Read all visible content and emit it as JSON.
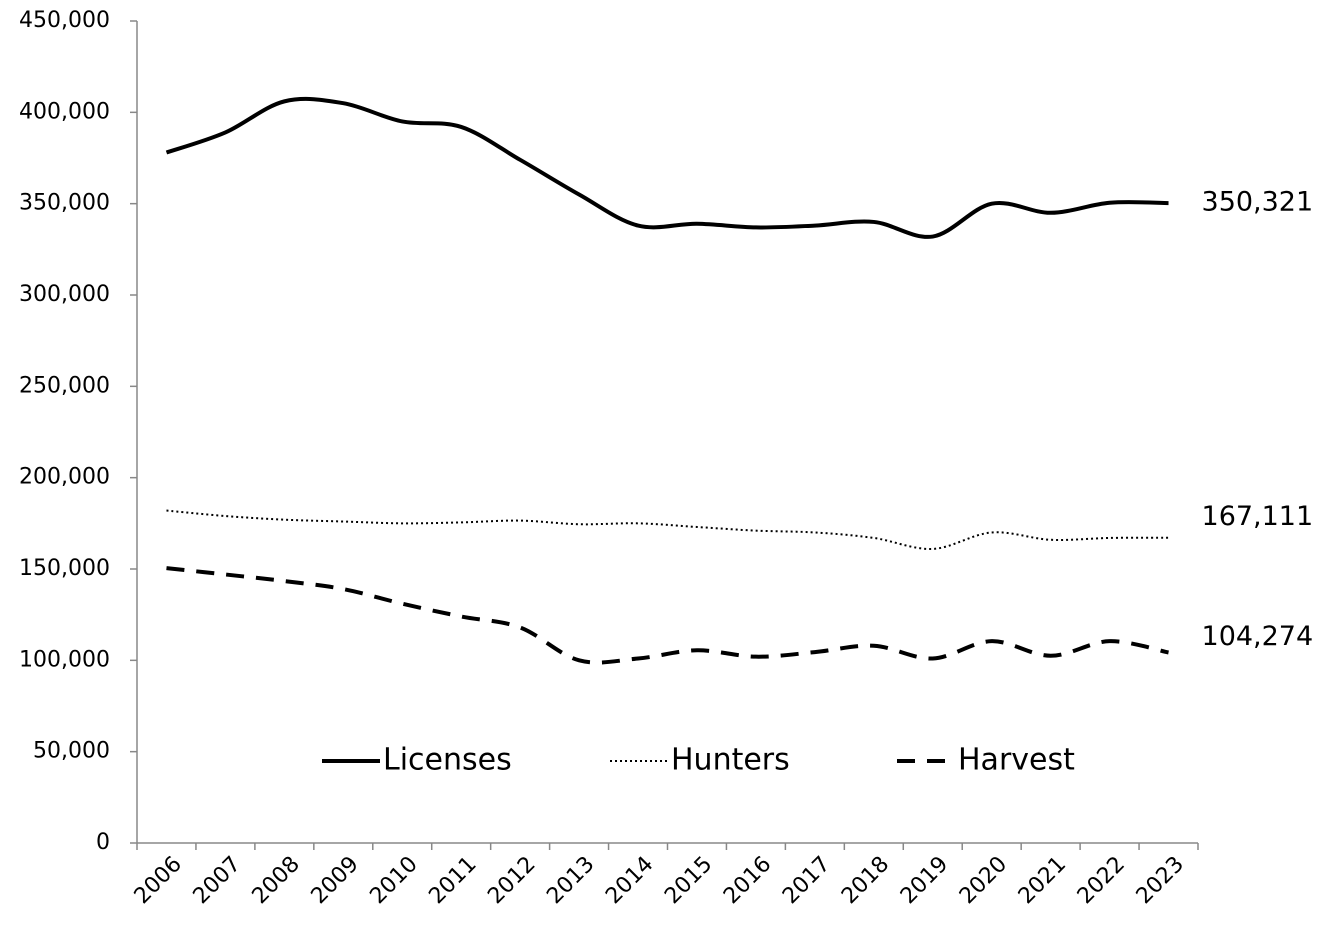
{
  "chart_data": {
    "type": "line",
    "categories": [
      "2006",
      "2007",
      "2008",
      "2009",
      "2010",
      "2011",
      "2012",
      "2013",
      "2014",
      "2015",
      "2016",
      "2017",
      "2018",
      "2019",
      "2020",
      "2021",
      "2022",
      "2023"
    ],
    "series": [
      {
        "name": "Licenses",
        "color": "#000000",
        "style": "solid",
        "values": [
          378000,
          389000,
          406000,
          405000,
          395000,
          392000,
          374000,
          355000,
          338000,
          339000,
          337000,
          338000,
          340000,
          332000,
          350000,
          345000,
          350500,
          350321
        ],
        "value_labels": [
          null,
          null,
          null,
          null,
          null,
          null,
          null,
          null,
          null,
          null,
          null,
          null,
          null,
          null,
          null,
          null,
          null,
          "350,321"
        ]
      },
      {
        "name": "Hunters",
        "color": "#000000",
        "style": "dotted",
        "values": [
          182000,
          179000,
          177000,
          176000,
          175000,
          175500,
          176500,
          174500,
          175000,
          173000,
          171000,
          170000,
          167000,
          161000,
          170000,
          166000,
          167000,
          167111
        ],
        "value_labels": [
          null,
          null,
          null,
          null,
          null,
          null,
          null,
          null,
          null,
          null,
          null,
          null,
          null,
          null,
          null,
          null,
          null,
          "167,111"
        ]
      },
      {
        "name": "Harvest",
        "color": "#000000",
        "style": "dashed",
        "values": [
          150500,
          147000,
          143400,
          139000,
          131000,
          124000,
          118000,
          100000,
          101000,
          105500,
          102000,
          104500,
          108000,
          101000,
          110500,
          102500,
          110500,
          104274
        ],
        "value_labels": [
          null,
          null,
          null,
          null,
          null,
          null,
          null,
          null,
          null,
          null,
          null,
          null,
          null,
          null,
          null,
          null,
          null,
          "104,274"
        ]
      }
    ],
    "ylim": [
      0,
      450000
    ],
    "yticks": [
      0,
      {
        "value": 50000,
        "label": "50,000"
      },
      {
        "value": 100000,
        "label": "100,000"
      },
      {
        "value": 150000,
        "label": "150,000"
      },
      {
        "value": 200000,
        "label": "200,000"
      },
      {
        "value": 250000,
        "label": "250,000"
      },
      {
        "value": 300000,
        "label": "300,000"
      },
      {
        "value": 350000,
        "label": "350,000"
      },
      {
        "value": 400000,
        "label": "400,000"
      },
      {
        "value": 450000,
        "label": "450,000"
      }
    ],
    "grid": false,
    "legend": "bottom"
  }
}
